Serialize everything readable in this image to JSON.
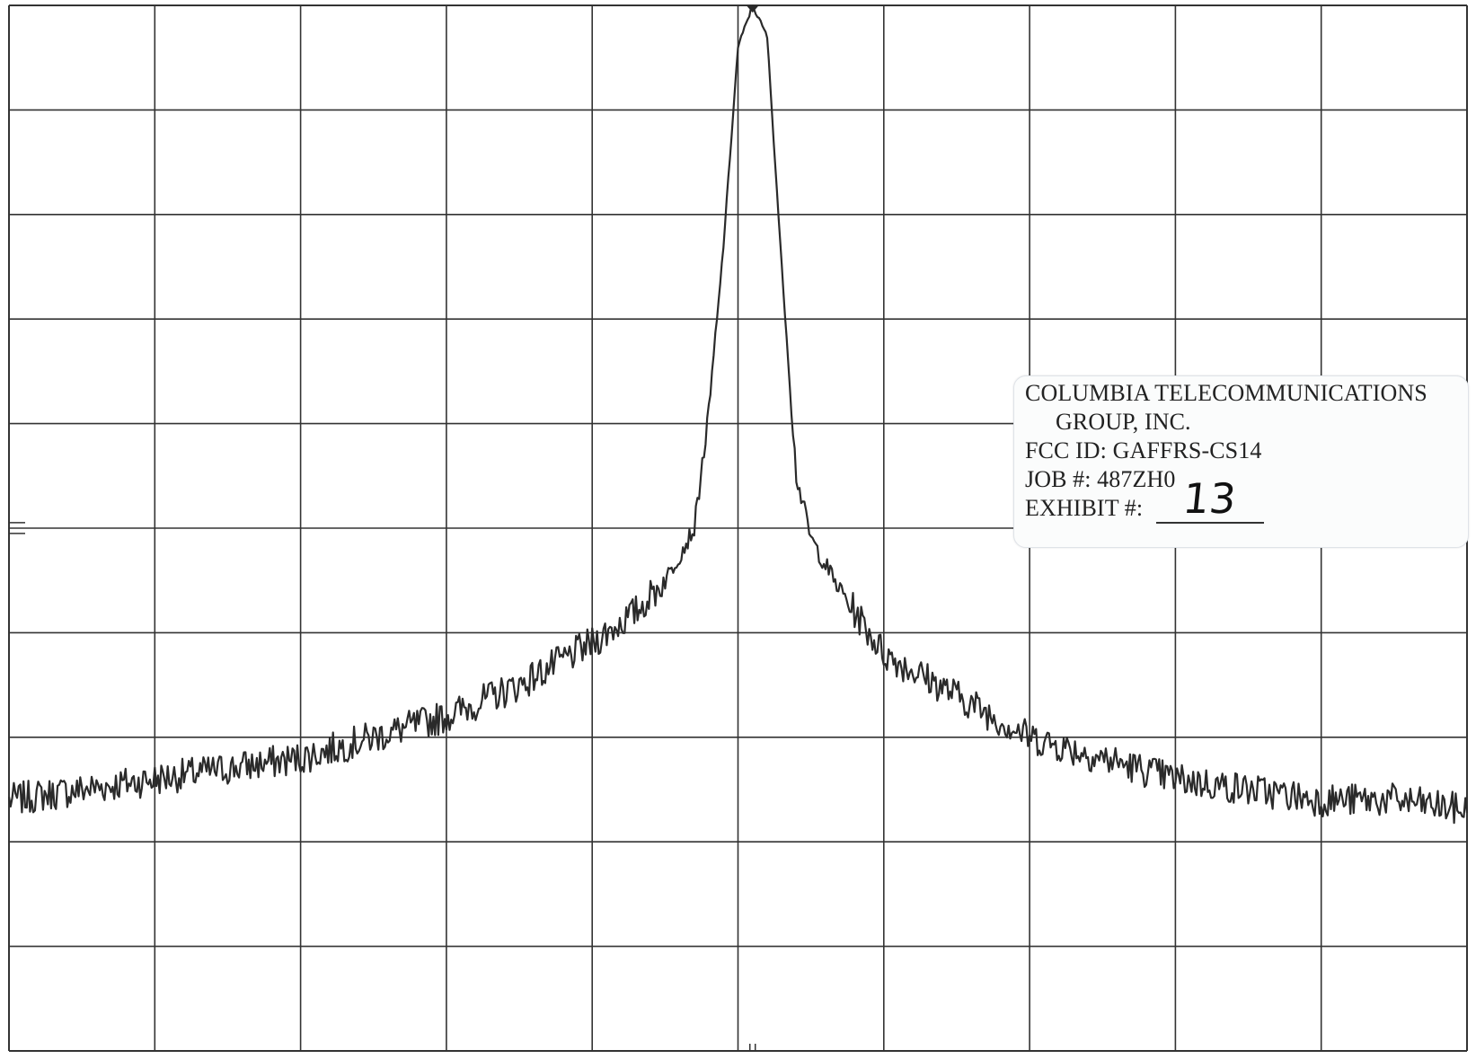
{
  "chart_data": {
    "type": "line",
    "title": "",
    "xlabel": "",
    "ylabel": "",
    "grid": true,
    "grid_divisions": {
      "x": 10,
      "y": 10
    },
    "xlim": [
      0,
      10
    ],
    "ylim": [
      0,
      10
    ],
    "peak": {
      "x": 5.1,
      "y": 10.0
    },
    "noise_floor": {
      "left": 2.3,
      "right": 2.3
    },
    "series": [
      {
        "x": [
          0,
          0.5,
          1.0,
          1.5,
          2.0,
          2.5,
          3.0,
          3.5,
          4.0,
          4.3,
          4.5,
          4.7,
          4.8,
          4.9,
          5.0,
          5.1,
          5.2,
          5.3,
          5.4,
          5.5,
          5.7,
          6.0,
          6.5,
          7.0,
          7.5,
          8.0,
          8.5,
          9.0,
          9.5,
          10
        ],
        "y": [
          2.4,
          2.5,
          2.6,
          2.7,
          2.8,
          3.0,
          3.2,
          3.5,
          3.9,
          4.2,
          4.5,
          5.0,
          6.1,
          7.7,
          9.6,
          10.0,
          9.7,
          7.5,
          5.5,
          4.9,
          4.4,
          3.8,
          3.4,
          3.0,
          2.8,
          2.6,
          2.5,
          2.4,
          2.4,
          2.3
        ]
      }
    ],
    "line_color": "#2a2a2a",
    "grid_color": "#333333"
  },
  "label": {
    "line1": "COLUMBIA TELECOMMUNICATIONS",
    "line2": "GROUP, INC.",
    "line3": "FCC ID: GAFFRS-CS14",
    "line4": "JOB #: 487ZH0",
    "line5": "EXHIBIT #:",
    "exhibit_value": "13"
  }
}
